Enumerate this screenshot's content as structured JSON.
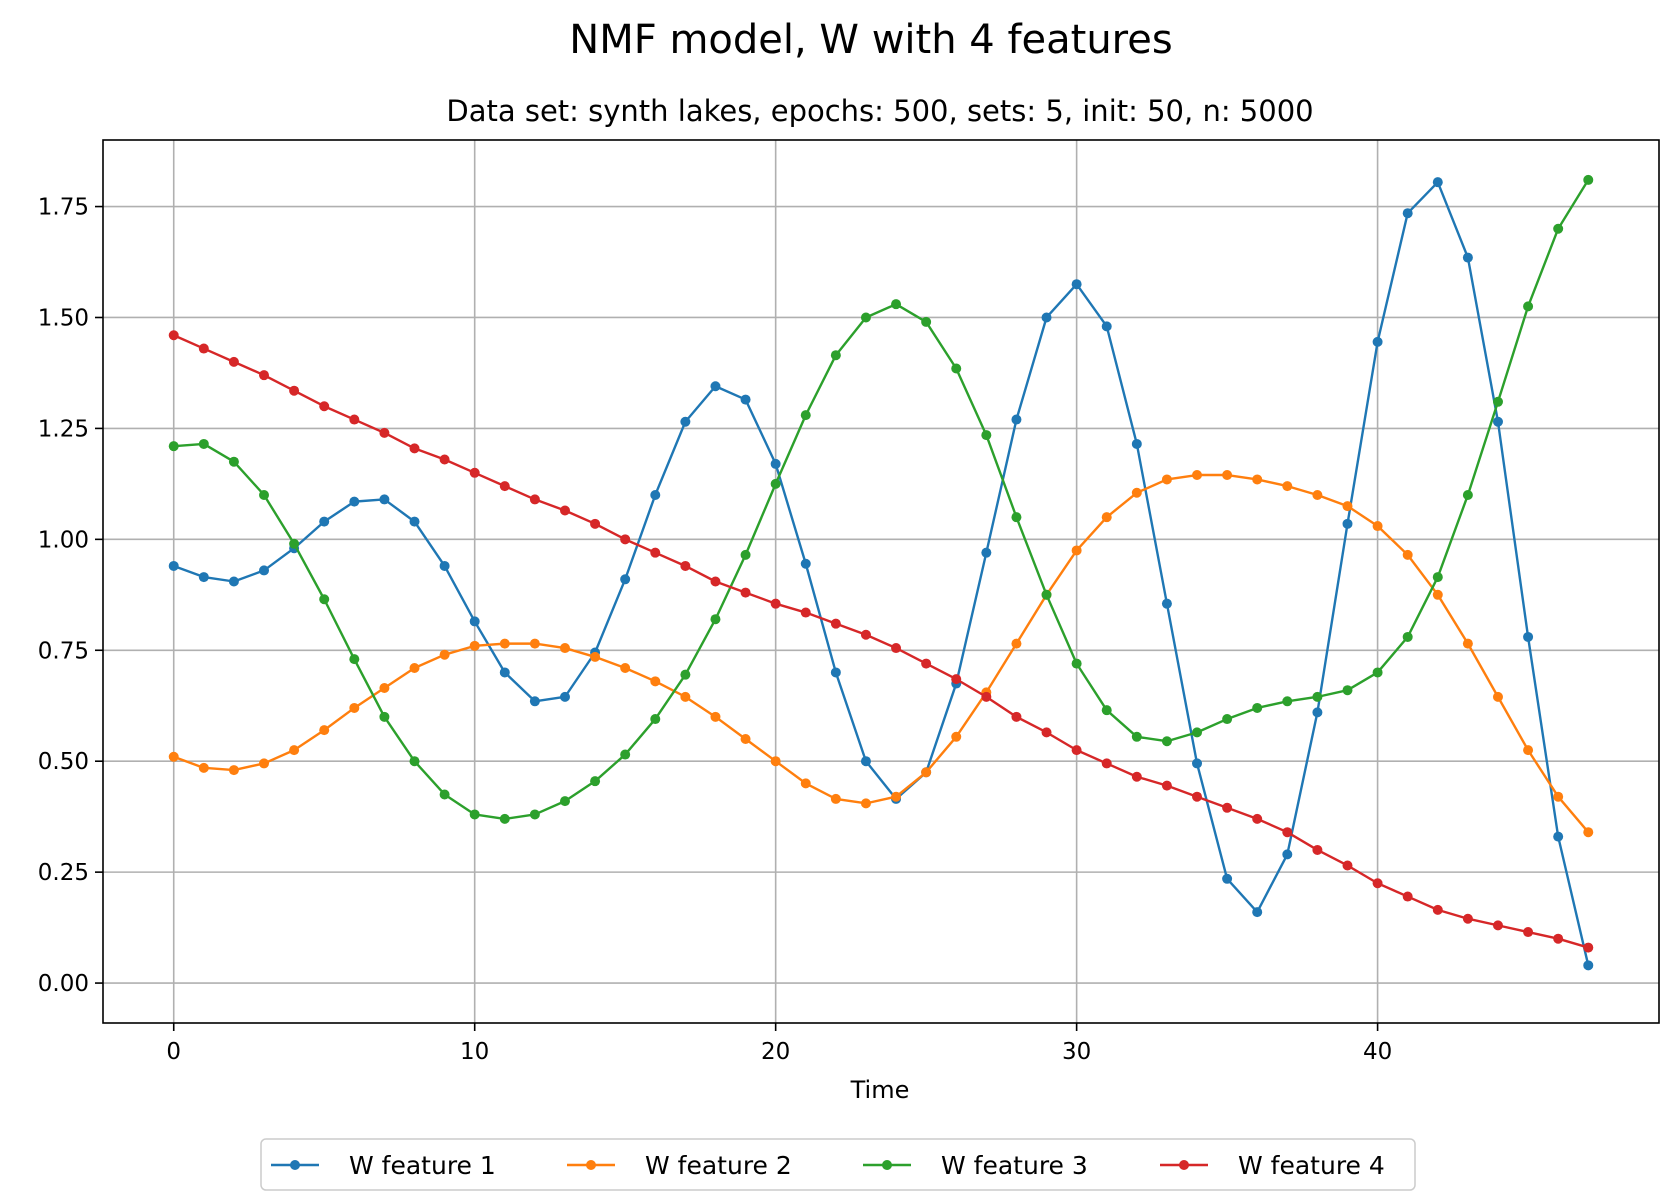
{
  "chart_data": {
    "type": "line",
    "title": "NMF model, W with 4 features",
    "subtitle": "Data set: synth lakes, epochs: 500, sets: 5, init: 50, n: 5000",
    "xlabel": "Time",
    "ylabel": "",
    "xlim": [
      -2.35,
      49.35
    ],
    "ylim": [
      -0.09,
      1.9
    ],
    "xticks": [
      0,
      10,
      20,
      30,
      40
    ],
    "xtick_labels": [
      "0",
      "10",
      "20",
      "30",
      "40"
    ],
    "yticks": [
      0,
      0.25,
      0.5,
      0.75,
      1.0,
      1.25,
      1.5,
      1.75
    ],
    "ytick_labels": [
      "0.00",
      "0.25",
      "0.50",
      "0.75",
      "1.00",
      "1.25",
      "1.50",
      "1.75"
    ],
    "grid": true,
    "legend_position": "bottom-center",
    "x": [
      0,
      1,
      2,
      3,
      4,
      5,
      6,
      7,
      8,
      9,
      10,
      11,
      12,
      13,
      14,
      15,
      16,
      17,
      18,
      19,
      20,
      21,
      22,
      23,
      24,
      25,
      26,
      27,
      28,
      29,
      30,
      31,
      32,
      33,
      34,
      35,
      36,
      37,
      38,
      39,
      40,
      41,
      42,
      43,
      44,
      45,
      46,
      47
    ],
    "series": [
      {
        "name": "W feature 1",
        "color": "#1f77b4",
        "values": [
          0.94,
          0.915,
          0.905,
          0.93,
          0.98,
          1.04,
          1.085,
          1.09,
          1.04,
          0.94,
          0.815,
          0.7,
          0.635,
          0.645,
          0.745,
          0.91,
          1.1,
          1.265,
          1.345,
          1.315,
          1.17,
          0.945,
          0.7,
          0.5,
          0.415,
          0.475,
          0.675,
          0.97,
          1.27,
          1.5,
          1.575,
          1.48,
          1.215,
          0.855,
          0.495,
          0.235,
          0.16,
          0.29,
          0.61,
          1.035,
          1.445,
          1.735,
          1.805,
          1.635,
          1.265,
          0.78,
          0.33,
          0.04
        ]
      },
      {
        "name": "W feature 2",
        "color": "#ff7f0e",
        "values": [
          0.51,
          0.485,
          0.48,
          0.495,
          0.525,
          0.57,
          0.62,
          0.665,
          0.71,
          0.74,
          0.76,
          0.765,
          0.765,
          0.755,
          0.735,
          0.71,
          0.68,
          0.645,
          0.6,
          0.55,
          0.5,
          0.45,
          0.415,
          0.405,
          0.42,
          0.475,
          0.555,
          0.655,
          0.765,
          0.875,
          0.975,
          1.05,
          1.105,
          1.135,
          1.145,
          1.145,
          1.135,
          1.12,
          1.1,
          1.075,
          1.03,
          0.965,
          0.875,
          0.765,
          0.645,
          0.525,
          0.42,
          0.34
        ]
      },
      {
        "name": "W feature 3",
        "color": "#2ca02c",
        "values": [
          1.21,
          1.215,
          1.175,
          1.1,
          0.99,
          0.865,
          0.73,
          0.6,
          0.5,
          0.425,
          0.38,
          0.37,
          0.38,
          0.41,
          0.455,
          0.515,
          0.595,
          0.695,
          0.82,
          0.965,
          1.125,
          1.28,
          1.415,
          1.5,
          1.53,
          1.49,
          1.385,
          1.235,
          1.05,
          0.875,
          0.72,
          0.615,
          0.555,
          0.545,
          0.565,
          0.595,
          0.62,
          0.635,
          0.645,
          0.66,
          0.7,
          0.78,
          0.915,
          1.1,
          1.31,
          1.525,
          1.7,
          1.81
        ]
      },
      {
        "name": "W feature 4",
        "color": "#d62728",
        "values": [
          1.46,
          1.43,
          1.4,
          1.37,
          1.335,
          1.3,
          1.27,
          1.24,
          1.205,
          1.18,
          1.15,
          1.12,
          1.09,
          1.065,
          1.035,
          1.0,
          0.97,
          0.94,
          0.905,
          0.88,
          0.855,
          0.835,
          0.81,
          0.785,
          0.755,
          0.72,
          0.685,
          0.645,
          0.6,
          0.565,
          0.525,
          0.495,
          0.465,
          0.445,
          0.42,
          0.395,
          0.37,
          0.34,
          0.3,
          0.265,
          0.225,
          0.195,
          0.165,
          0.145,
          0.13,
          0.115,
          0.1,
          0.08
        ]
      }
    ]
  }
}
